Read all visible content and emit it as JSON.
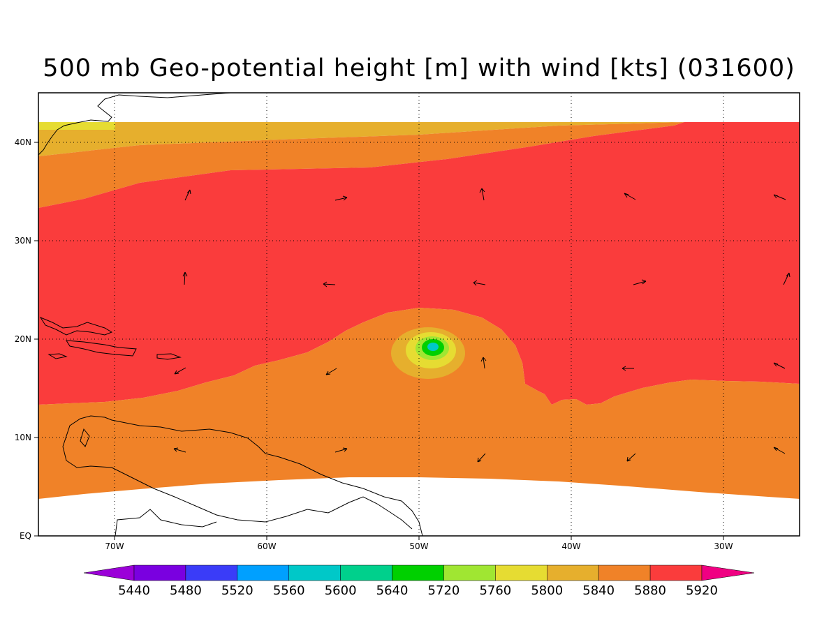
{
  "title": "500 mb Geo-potential height [m] with wind [kts] (031600)",
  "axes": {
    "lon_ticks": [
      "70W",
      "60W",
      "50W",
      "40W",
      "30W"
    ],
    "lat_ticks": [
      "EQ",
      "10N",
      "20N",
      "30N",
      "40N"
    ],
    "lon_range": [
      -75,
      -25
    ],
    "lat_range": [
      0,
      45
    ],
    "grid": "dotted"
  },
  "colorbar": {
    "labels": [
      "5440",
      "5480",
      "5520",
      "5560",
      "5600",
      "5640",
      "5720",
      "5760",
      "5800",
      "5840",
      "5880",
      "5920"
    ],
    "colors": [
      "#9b00d8",
      "#7a00e0",
      "#3a3cf8",
      "#00a0ff",
      "#00c8c8",
      "#00d08c",
      "#00d000",
      "#a0e632",
      "#e6dc32",
      "#e6af2d",
      "#f08228",
      "#fa3c3c",
      "#f00082"
    ],
    "extend": "both"
  },
  "fields": {
    "colors": {
      "c5800": "#e6dc32",
      "c5840": "#e6af2d",
      "c5880": "#f08228",
      "c5920": "#fa3c3c",
      "c5720": "#a0e632",
      "c5640": "#00d000",
      "c5560": "#00c8c8"
    },
    "vortex_center": {
      "lon": -49,
      "lat": 19
    }
  }
}
